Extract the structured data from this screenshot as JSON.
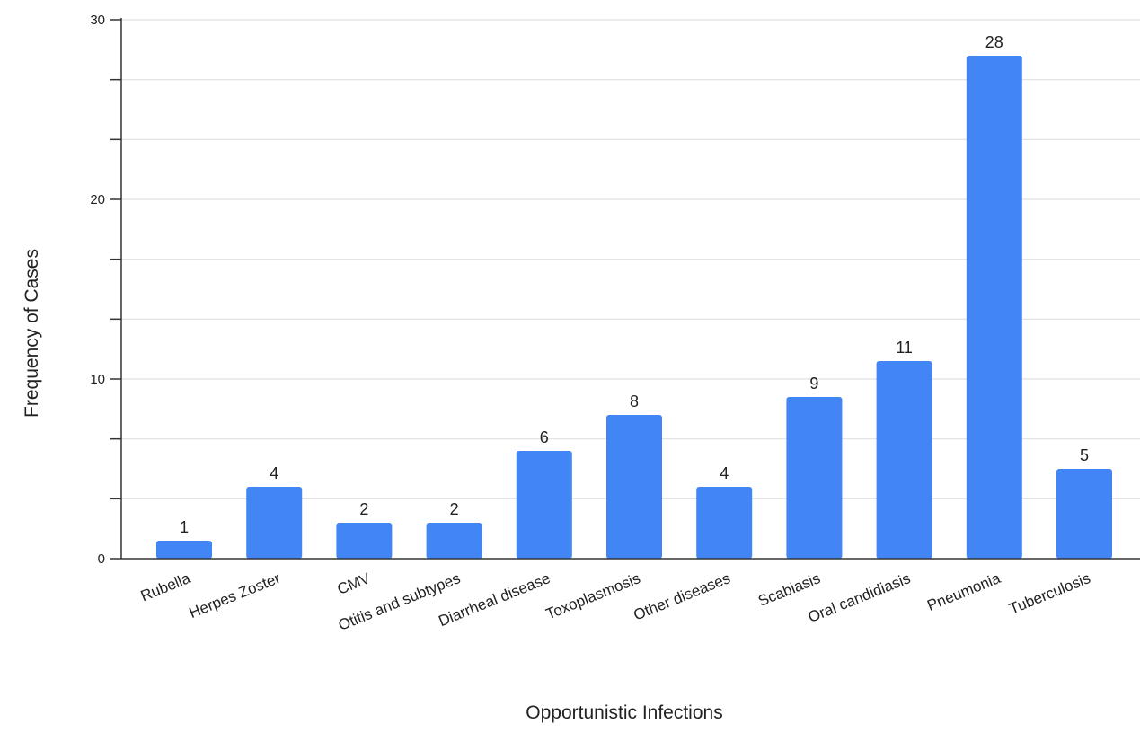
{
  "chart_data": {
    "type": "bar",
    "title": "",
    "xlabel": "Opportunistic Infections",
    "ylabel": "Frequency of Cases",
    "categories": [
      "Rubella",
      "Herpes Zoster",
      "CMV",
      "Otitis and subtypes",
      "Diarrheal disease",
      "Toxoplasmosis",
      "Other diseases",
      "Scabiasis",
      "Oral candidiasis",
      "Pneumonia",
      "Tuberculosis"
    ],
    "values": [
      1,
      4,
      2,
      2,
      6,
      8,
      4,
      9,
      11,
      28,
      5
    ],
    "data_labels": [
      "1",
      "4",
      "2",
      "2",
      "6",
      "8",
      "4",
      "9",
      "11",
      "28",
      "5"
    ],
    "ylim": [
      0,
      30
    ],
    "y_ticks": [
      "0",
      "10",
      "20",
      "30"
    ],
    "bar_color": "#4285f4",
    "grid": true,
    "legend": "none"
  }
}
